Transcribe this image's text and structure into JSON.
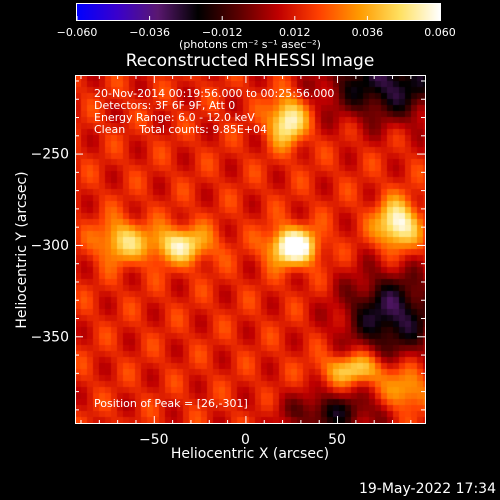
{
  "chart_data": {
    "type": "heatmap",
    "title": "Reconstructed RHESSI Image",
    "xlabel": "Heliocentric X (arcsec)",
    "ylabel": "Heliocentric Y (arcsec)",
    "xlim": [
      -93,
      98
    ],
    "ylim": [
      -398,
      -207
    ],
    "x_ticks": [
      {
        "value": -50,
        "label": "−50"
      },
      {
        "value": 0,
        "label": "0"
      },
      {
        "value": 50,
        "label": "50"
      }
    ],
    "y_ticks": [
      {
        "value": -250,
        "label": "−250"
      },
      {
        "value": -300,
        "label": "−300"
      },
      {
        "value": -350,
        "label": "−350"
      }
    ],
    "colorbar": {
      "range": [
        -0.06,
        0.06
      ],
      "ticks": [
        {
          "value": -0.06,
          "label": "−0.060"
        },
        {
          "value": -0.036,
          "label": "−0.036"
        },
        {
          "value": -0.012,
          "label": "−0.012"
        },
        {
          "value": 0.012,
          "label": "0.012"
        },
        {
          "value": 0.036,
          "label": "0.036"
        },
        {
          "value": 0.06,
          "label": "0.060"
        }
      ],
      "unit_label": "(photons cm⁻² s⁻¹ asec⁻²)",
      "colormap": [
        "#0000ff",
        "#3a00cc",
        "#5a1870",
        "#000000",
        "#5a0000",
        "#c00000",
        "#ff4000",
        "#ff9a00",
        "#ffe060",
        "#ffffff"
      ]
    },
    "sources": [
      {
        "x": 26,
        "y": -301,
        "amplitude": 0.058,
        "sigma_x": 9,
        "sigma_y": 7
      },
      {
        "x": 23,
        "y": -232,
        "amplitude": 0.046,
        "sigma_x": 7,
        "sigma_y": 9
      },
      {
        "x": 83,
        "y": -289,
        "amplitude": 0.048,
        "sigma_x": 8,
        "sigma_y": 9
      },
      {
        "x": -36,
        "y": -300,
        "amplitude": 0.038,
        "sigma_x": 12,
        "sigma_y": 7
      },
      {
        "x": -68,
        "y": -298,
        "amplitude": 0.032,
        "sigma_x": 9,
        "sigma_y": 8
      },
      {
        "x": 60,
        "y": -368,
        "amplitude": 0.034,
        "sigma_x": 12,
        "sigma_y": 6
      },
      {
        "x": 88,
        "y": -380,
        "amplitude": 0.026,
        "sigma_x": 8,
        "sigma_y": 8
      }
    ],
    "negative_regions": [
      {
        "x": 78,
        "y": -212,
        "amplitude": -0.04,
        "sigma_x": 24,
        "sigma_y": 14
      },
      {
        "x": 80,
        "y": -338,
        "amplitude": -0.042,
        "sigma_x": 18,
        "sigma_y": 16
      },
      {
        "x": 48,
        "y": -392,
        "amplitude": -0.03,
        "sigma_x": 18,
        "sigma_y": 8
      }
    ],
    "annotations": {
      "time_range": "20-Nov-2014 00:19:56.000 to 00:25:56.000",
      "detectors": "Detectors: 3F 6F 9F, Att 0",
      "energy_range": "Energy Range: 6.0 - 12.0 keV",
      "method_counts": "Clean    Total counts: 9.85E+04",
      "peak_position": "Position of Peak = [26,-301]"
    }
  },
  "footer": {
    "timestamp": "19-May-2022 17:34"
  }
}
